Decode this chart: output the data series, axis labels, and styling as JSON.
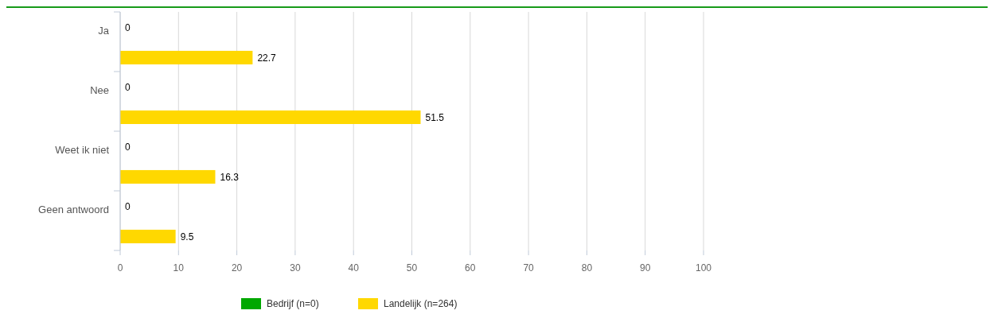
{
  "chart_data": {
    "type": "bar",
    "orientation": "horizontal",
    "categories": [
      "Ja",
      "Nee",
      "Weet ik niet",
      "Geen antwoord"
    ],
    "series": [
      {
        "name": "Bedrijf (n=0)",
        "color": "#00a800",
        "values": [
          0,
          0,
          0,
          0
        ]
      },
      {
        "name": "Landelijk (n=264)",
        "color": "#ffd800",
        "values": [
          22.7,
          51.5,
          16.3,
          9.5
        ]
      }
    ],
    "xlim": [
      0,
      100
    ],
    "xticks": [
      0,
      10,
      20,
      30,
      40,
      50,
      60,
      70,
      80,
      90,
      100
    ],
    "grid": "x",
    "legend": "bottom",
    "data_labels": true
  }
}
